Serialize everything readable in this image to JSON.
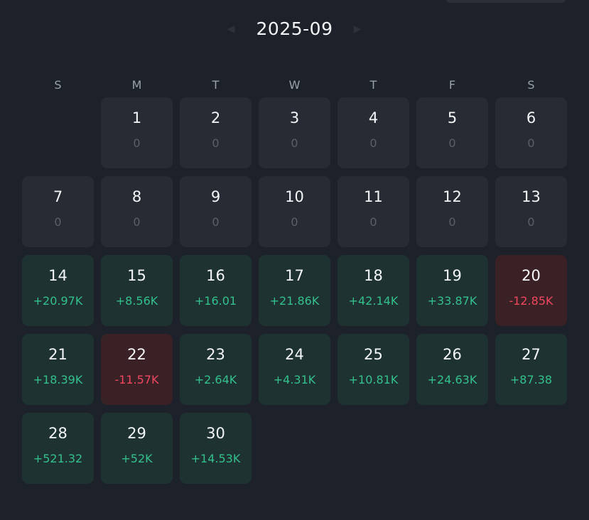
{
  "header": {
    "month_label": "2025-09",
    "prev_icon": "chevron-left-icon",
    "next_icon": "chevron-right-icon"
  },
  "weekdays": [
    "S",
    "M",
    "T",
    "W",
    "T",
    "F",
    "S"
  ],
  "leading_blank_days": 1,
  "days": [
    {
      "day": "1",
      "pnl": "0",
      "status": "zero"
    },
    {
      "day": "2",
      "pnl": "0",
      "status": "zero"
    },
    {
      "day": "3",
      "pnl": "0",
      "status": "zero"
    },
    {
      "day": "4",
      "pnl": "0",
      "status": "zero"
    },
    {
      "day": "5",
      "pnl": "0",
      "status": "zero"
    },
    {
      "day": "6",
      "pnl": "0",
      "status": "zero"
    },
    {
      "day": "7",
      "pnl": "0",
      "status": "zero"
    },
    {
      "day": "8",
      "pnl": "0",
      "status": "zero"
    },
    {
      "day": "9",
      "pnl": "0",
      "status": "zero"
    },
    {
      "day": "10",
      "pnl": "0",
      "status": "zero"
    },
    {
      "day": "11",
      "pnl": "0",
      "status": "zero"
    },
    {
      "day": "12",
      "pnl": "0",
      "status": "zero"
    },
    {
      "day": "13",
      "pnl": "0",
      "status": "zero"
    },
    {
      "day": "14",
      "pnl": "+20.97K",
      "status": "pos"
    },
    {
      "day": "15",
      "pnl": "+8.56K",
      "status": "pos"
    },
    {
      "day": "16",
      "pnl": "+16.01",
      "status": "pos"
    },
    {
      "day": "17",
      "pnl": "+21.86K",
      "status": "pos"
    },
    {
      "day": "18",
      "pnl": "+42.14K",
      "status": "pos"
    },
    {
      "day": "19",
      "pnl": "+33.87K",
      "status": "pos"
    },
    {
      "day": "20",
      "pnl": "-12.85K",
      "status": "neg"
    },
    {
      "day": "21",
      "pnl": "+18.39K",
      "status": "pos"
    },
    {
      "day": "22",
      "pnl": "-11.57K",
      "status": "neg"
    },
    {
      "day": "23",
      "pnl": "+2.64K",
      "status": "pos"
    },
    {
      "day": "24",
      "pnl": "+4.31K",
      "status": "pos"
    },
    {
      "day": "25",
      "pnl": "+10.81K",
      "status": "pos"
    },
    {
      "day": "26",
      "pnl": "+24.63K",
      "status": "pos"
    },
    {
      "day": "27",
      "pnl": "+87.38",
      "status": "pos"
    },
    {
      "day": "28",
      "pnl": "+521.32",
      "status": "pos"
    },
    {
      "day": "29",
      "pnl": "+52K",
      "status": "pos"
    },
    {
      "day": "30",
      "pnl": "+14.53K",
      "status": "pos"
    }
  ],
  "colors": {
    "background": "#1d2129",
    "cell_neutral": "#272b34",
    "cell_positive": "#1d3231",
    "cell_negative": "#3a2126",
    "text_positive": "#34c08c",
    "text_negative": "#f0475f",
    "text_zero": "#5a5f68"
  }
}
